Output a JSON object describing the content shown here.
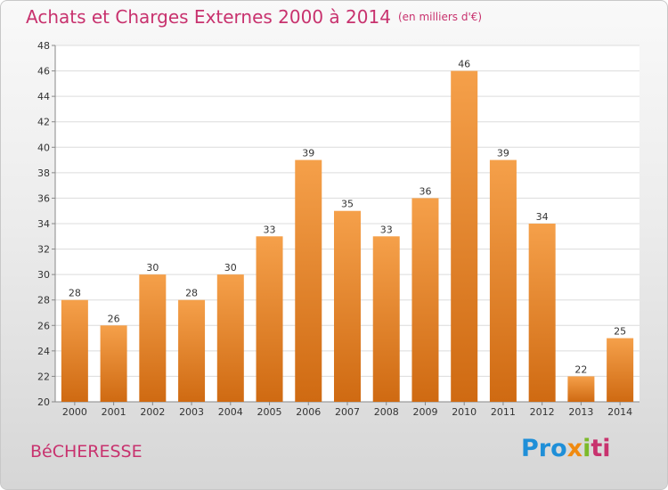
{
  "header": {
    "title": "Achats et Charges Externes 2000 à 2014",
    "unit": "(en milliers d'€)"
  },
  "footer": {
    "commune": "BéCHERESSE",
    "logo": {
      "part1": "Pro",
      "part2": "x",
      "part3": "i",
      "part4": "ti"
    }
  },
  "colors": {
    "title": "#c8326e",
    "bar_top": "#f5a04a",
    "bar_bottom": "#cf6a12",
    "grid": "#dcdcdc"
  },
  "chart_data": {
    "type": "bar",
    "title": "Achats et Charges Externes 2000 à 2014",
    "xlabel": "",
    "ylabel": "",
    "categories": [
      "2000",
      "2001",
      "2002",
      "2003",
      "2004",
      "2005",
      "2006",
      "2007",
      "2008",
      "2009",
      "2010",
      "2011",
      "2012",
      "2013",
      "2014"
    ],
    "values": [
      28,
      26,
      30,
      28,
      30,
      33,
      39,
      35,
      33,
      36,
      46,
      39,
      34,
      22,
      25
    ],
    "ylim": [
      20,
      48
    ],
    "yticks": [
      20,
      22,
      24,
      26,
      28,
      30,
      32,
      34,
      36,
      38,
      40,
      42,
      44,
      46,
      48
    ],
    "grid": true,
    "legend": "none"
  }
}
